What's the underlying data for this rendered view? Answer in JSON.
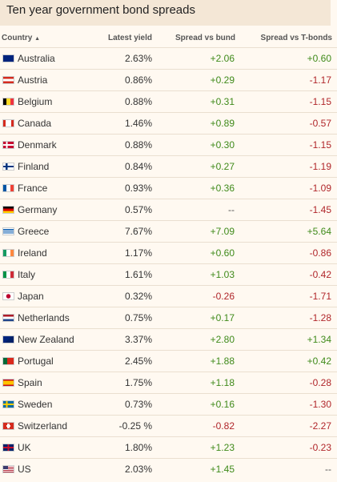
{
  "header": {
    "title": "Ten year government bond spreads"
  },
  "table": {
    "columns": [
      "Country",
      "Latest yield",
      "Spread vs bund",
      "Spread vs T-bonds"
    ],
    "rows": [
      [
        "Australia",
        "2.63%",
        "+2.06",
        "+0.60"
      ],
      [
        "Austria",
        "0.86%",
        "+0.29",
        "-1.17"
      ],
      [
        "Belgium",
        "0.88%",
        "+0.31",
        "-1.15"
      ],
      [
        "Canada",
        "1.46%",
        "+0.89",
        "-0.57"
      ],
      [
        "Denmark",
        "0.88%",
        "+0.30",
        "-1.15"
      ],
      [
        "Finland",
        "0.84%",
        "+0.27",
        "-1.19"
      ],
      [
        "France",
        "0.93%",
        "+0.36",
        "-1.09"
      ],
      [
        "Germany",
        "0.57%",
        "--",
        "-1.45"
      ],
      [
        "Greece",
        "7.67%",
        "+7.09",
        "+5.64"
      ],
      [
        "Ireland",
        "1.17%",
        "+0.60",
        "-0.86"
      ],
      [
        "Italy",
        "1.61%",
        "+1.03",
        "-0.42"
      ],
      [
        "Japan",
        "0.32%",
        "-0.26",
        "-1.71"
      ],
      [
        "Netherlands",
        "0.75%",
        "+0.17",
        "-1.28"
      ],
      [
        "New Zealand",
        "3.37%",
        "+2.80",
        "+1.34"
      ],
      [
        "Portugal",
        "2.45%",
        "+1.88",
        "+0.42"
      ],
      [
        "Spain",
        "1.75%",
        "+1.18",
        "-0.28"
      ],
      [
        "Sweden",
        "0.73%",
        "+0.16",
        "-1.30"
      ],
      [
        "Switzerland",
        "-0.25 %",
        "-0.82",
        "-2.27"
      ],
      [
        "UK",
        "1.80%",
        "+1.23",
        "-0.23"
      ],
      [
        "US",
        "2.03%",
        "+1.45",
        "--"
      ]
    ]
  }
}
